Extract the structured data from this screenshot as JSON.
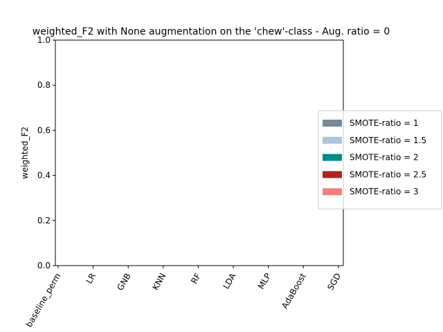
{
  "chart_data": {
    "type": "bar",
    "title": "weighted_F2 with None augmentation on the 'chew'-class - Aug. ratio = 0",
    "y_label": "weighted_F2",
    "categories": [
      "baseline_perm",
      "LR",
      "GNB",
      "KNN",
      "RF",
      "LDA",
      "MLP",
      "AdaBoost",
      "SGD"
    ],
    "series": [
      {
        "name": "SMOTE-ratio = 1",
        "color": "#778899",
        "values": [
          0,
          0,
          0,
          0,
          0,
          0,
          0,
          0,
          0
        ]
      },
      {
        "name": "SMOTE-ratio = 1.5",
        "color": "#b0c4de",
        "values": [
          0,
          0,
          0,
          0,
          0,
          0,
          0,
          0,
          0
        ]
      },
      {
        "name": "SMOTE-ratio = 2",
        "color": "#008b8b",
        "values": [
          0,
          0,
          0,
          0,
          0,
          0,
          0,
          0,
          0
        ]
      },
      {
        "name": "SMOTE-ratio = 2.5",
        "color": "#b22222",
        "values": [
          0,
          0,
          0,
          0,
          0,
          0,
          0,
          0,
          0
        ]
      },
      {
        "name": "SMOTE-ratio = 3",
        "color": "#f08080",
        "values": [
          0,
          0,
          0,
          0,
          0,
          0,
          0,
          0,
          0
        ]
      }
    ],
    "ylim": [
      0,
      1
    ],
    "yticks": [
      {
        "value": 0,
        "label": "0.0"
      },
      {
        "value": 0.2,
        "label": "0.2"
      },
      {
        "value": 0.4,
        "label": "0.4"
      },
      {
        "value": 0.6,
        "label": "0.6"
      },
      {
        "value": 0.8,
        "label": "0.8"
      },
      {
        "value": 1,
        "label": "1.0"
      }
    ],
    "legend": "right"
  }
}
